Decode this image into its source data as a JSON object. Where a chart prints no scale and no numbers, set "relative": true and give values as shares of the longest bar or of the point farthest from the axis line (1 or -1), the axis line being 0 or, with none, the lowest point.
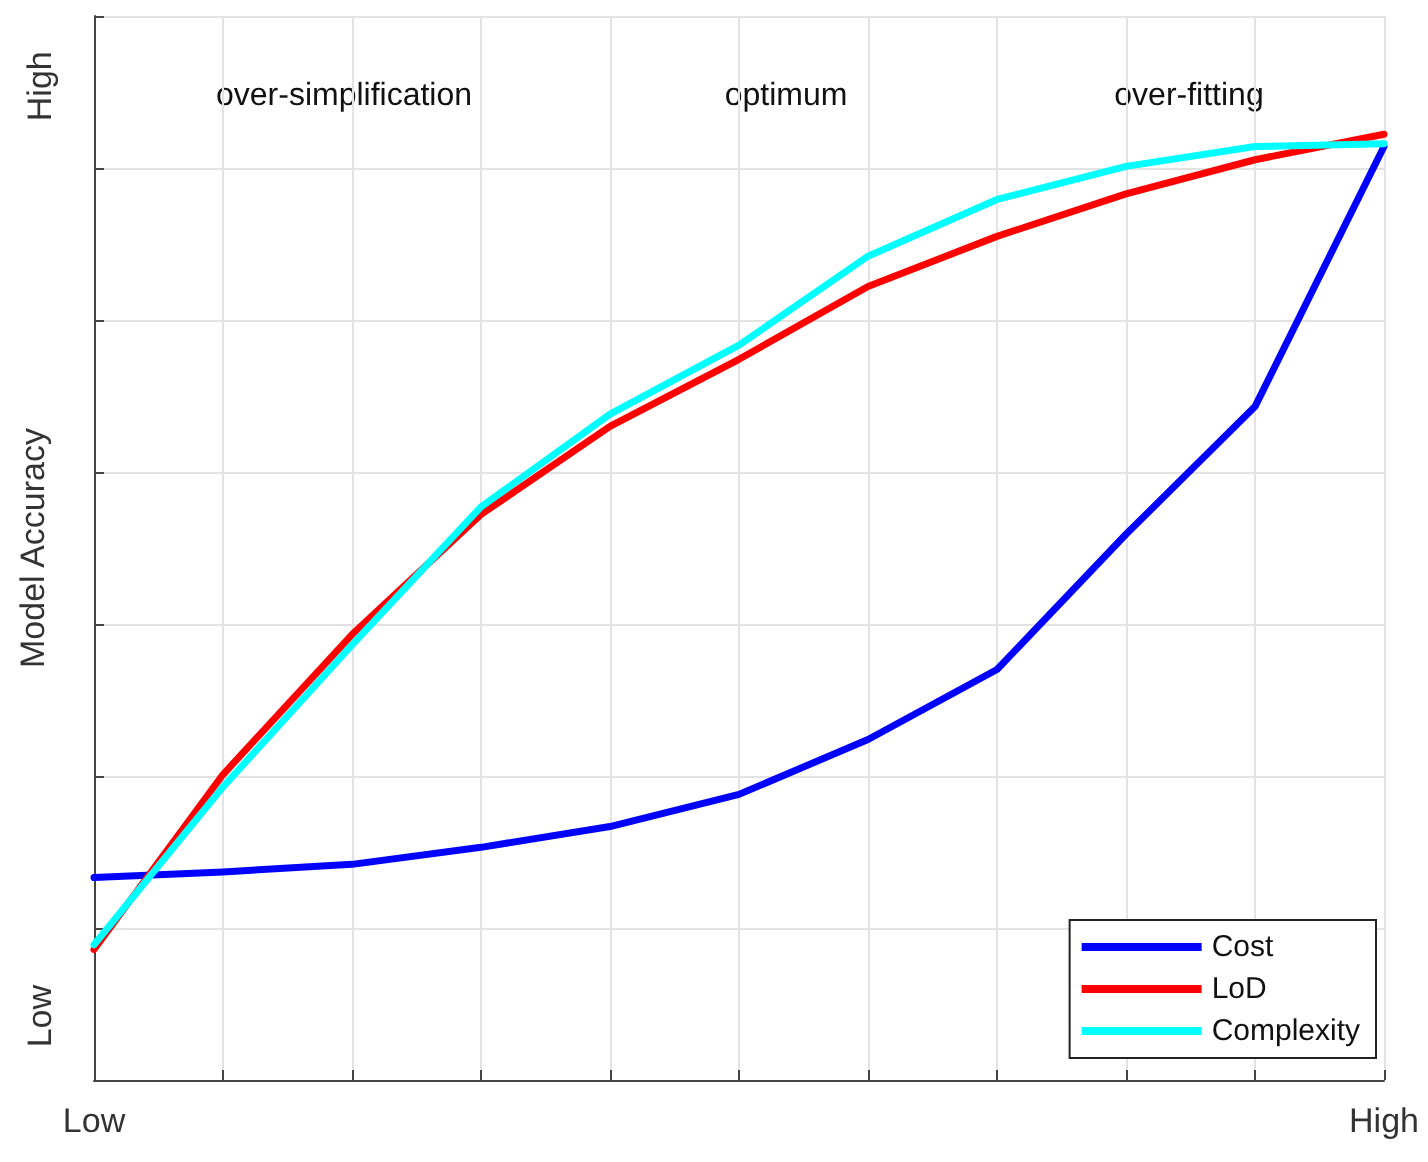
{
  "chart_data": {
    "type": "line",
    "ylabel": "Model Accuracy",
    "relative": true,
    "categories": [
      "Low",
      null,
      null,
      null,
      null,
      null,
      null,
      null,
      null,
      null,
      "High"
    ],
    "series": [
      {
        "name": "Cost",
        "color": "#0000ff",
        "values": [
          0.214,
          0.22,
          0.228,
          0.246,
          0.268,
          0.302,
          0.36,
          0.434,
          0.577,
          0.712,
          0.987
        ]
      },
      {
        "name": "LoD",
        "color": "#ff0000",
        "values": [
          0.138,
          0.323,
          0.471,
          0.598,
          0.691,
          0.762,
          0.839,
          0.892,
          0.937,
          0.973,
          1
        ]
      },
      {
        "name": "Complexity",
        "color": "#00ffff",
        "values": [
          0.143,
          0.31,
          0.46,
          0.606,
          0.704,
          0.777,
          0.871,
          0.931,
          0.966,
          0.987,
          0.99
        ]
      }
    ],
    "annotations": [
      "over-simplification",
      "optimum",
      "over-fitting",
      "Low",
      "High"
    ],
    "grid": true,
    "legend": "bottom right",
    "marker": "none",
    "line_style": "solid"
  }
}
